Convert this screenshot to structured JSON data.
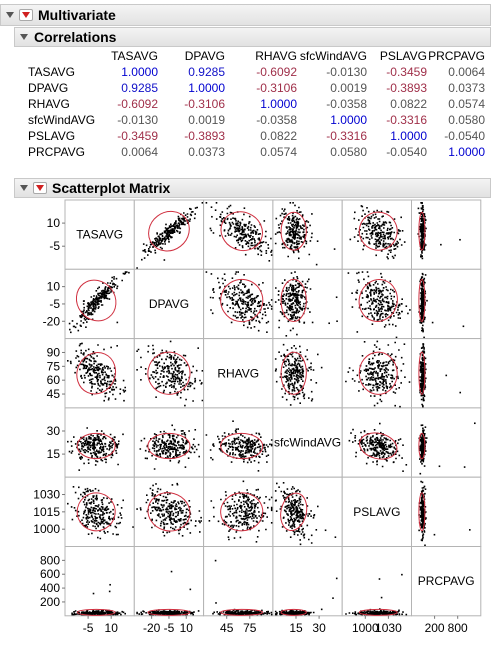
{
  "multivariate": {
    "title": "Multivariate"
  },
  "correlations": {
    "title": "Correlations",
    "columns": [
      "TASAVG",
      "DPAVG",
      "RHAVG",
      "sfcWindAVG",
      "PSLAVG",
      "PRCPAVG"
    ],
    "rows": [
      {
        "label": "TASAVG",
        "values": [
          "1.0000",
          "0.9285",
          "-0.6092",
          "-0.0130",
          "-0.3459",
          "0.0064"
        ]
      },
      {
        "label": "DPAVG",
        "values": [
          "0.9285",
          "1.0000",
          "-0.3106",
          "0.0019",
          "-0.3893",
          "0.0373"
        ]
      },
      {
        "label": "RHAVG",
        "values": [
          "-0.6092",
          "-0.3106",
          "1.0000",
          "-0.0358",
          "0.0822",
          "0.0574"
        ]
      },
      {
        "label": "sfcWindAVG",
        "values": [
          "-0.0130",
          "0.0019",
          "-0.0358",
          "1.0000",
          "-0.3316",
          "0.0580"
        ]
      },
      {
        "label": "PSLAVG",
        "values": [
          "-0.3459",
          "-0.3893",
          "0.0822",
          "-0.3316",
          "1.0000",
          "-0.0540"
        ]
      },
      {
        "label": "PRCPAVG",
        "values": [
          "0.0064",
          "0.0373",
          "0.0574",
          "0.0580",
          "-0.0540",
          "1.0000"
        ]
      }
    ]
  },
  "scatterplot_matrix": {
    "title": "Scatterplot Matrix",
    "variables": [
      "TASAVG",
      "DPAVG",
      "RHAVG",
      "sfcWindAVG",
      "PSLAVG",
      "PRCPAVG"
    ],
    "y_ticks": [
      [
        "10",
        "-5"
      ],
      [
        "10",
        "-5",
        "-20"
      ],
      [
        "90",
        "75",
        "60",
        "45"
      ],
      [
        "30",
        "15"
      ],
      [
        "1030",
        "1015",
        "1000"
      ],
      [
        "800",
        "600",
        "400",
        "200"
      ]
    ],
    "x_ticks": [
      [
        "-5",
        "10"
      ],
      [
        "-20",
        "-5",
        "10"
      ],
      [
        "45",
        "75"
      ],
      [
        "15",
        "30"
      ],
      [
        "1000",
        "1030"
      ],
      [
        "200",
        "800"
      ]
    ]
  },
  "colors": {
    "positive": "#1010c8",
    "negative": "#a0304a",
    "neutral": "#555555",
    "diagonal": "#0000d0",
    "ellipse": "#d03040"
  }
}
